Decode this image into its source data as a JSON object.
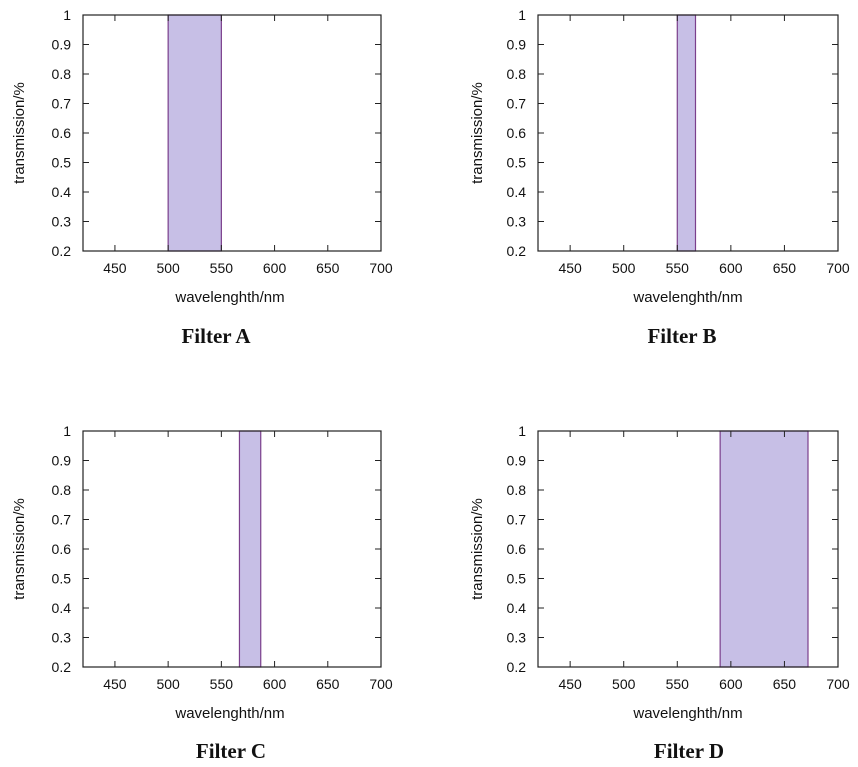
{
  "colors": {
    "band_fill": "#c7bfe6",
    "band_stroke": "#7b3f8c",
    "frame": "#222222",
    "text": "#111111"
  },
  "chart_data": [
    {
      "type": "area",
      "title": "Filter A",
      "xlabel": "wavelenghth/nm",
      "ylabel": "transmission/%",
      "xlim": [
        420,
        700
      ],
      "ylim": [
        0.2,
        1
      ],
      "xticks": [
        450,
        500,
        550,
        600,
        650,
        700
      ],
      "yticks": [
        0.2,
        0.3,
        0.4,
        0.5,
        0.6,
        0.7,
        0.8,
        0.9,
        1
      ],
      "series": [
        {
          "x": [
            500,
            550
          ],
          "y": [
            1,
            1
          ]
        }
      ],
      "grid": false
    },
    {
      "type": "area",
      "title": "Filter B",
      "xlabel": "wavelenghth/nm",
      "ylabel": "transmission/%",
      "xlim": [
        420,
        700
      ],
      "ylim": [
        0.2,
        1
      ],
      "xticks": [
        450,
        500,
        550,
        600,
        650,
        700
      ],
      "yticks": [
        0.2,
        0.3,
        0.4,
        0.5,
        0.6,
        0.7,
        0.8,
        0.9,
        1
      ],
      "series": [
        {
          "x": [
            550,
            567
          ],
          "y": [
            1,
            1
          ]
        }
      ],
      "grid": false
    },
    {
      "type": "area",
      "title": "Filter C",
      "xlabel": "wavelenghth/nm",
      "ylabel": "transmission/%",
      "xlim": [
        420,
        700
      ],
      "ylim": [
        0.2,
        1
      ],
      "xticks": [
        450,
        500,
        550,
        600,
        650,
        700
      ],
      "yticks": [
        0.2,
        0.3,
        0.4,
        0.5,
        0.6,
        0.7,
        0.8,
        0.9,
        1
      ],
      "series": [
        {
          "x": [
            567,
            587
          ],
          "y": [
            1,
            1
          ]
        }
      ],
      "grid": false
    },
    {
      "type": "area",
      "title": "Filter D",
      "xlabel": "wavelenghth/nm",
      "ylabel": "transmission/%",
      "xlim": [
        420,
        700
      ],
      "ylim": [
        0.2,
        1
      ],
      "xticks": [
        450,
        500,
        550,
        600,
        650,
        700
      ],
      "yticks": [
        0.2,
        0.3,
        0.4,
        0.5,
        0.6,
        0.7,
        0.8,
        0.9,
        1
      ],
      "series": [
        {
          "x": [
            590,
            672
          ],
          "y": [
            1,
            1
          ]
        }
      ],
      "grid": false
    }
  ]
}
